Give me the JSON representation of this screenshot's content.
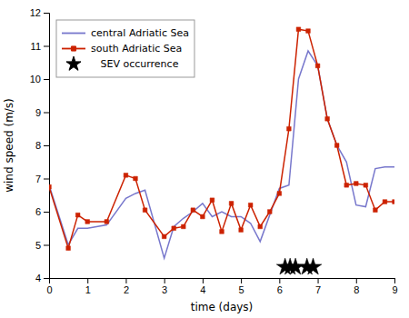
{
  "chart_data": {
    "type": "line",
    "xlabel": "time (days)",
    "ylabel": "wind speed (m/s)",
    "series": [
      {
        "name": "central Adriatic Sea",
        "color": "#7777cc",
        "marker": "none",
        "line_style": "solid",
        "x": [
          0,
          0.5,
          0.75,
          1.0,
          1.5,
          2.0,
          2.25,
          2.5,
          3.0,
          3.25,
          3.5,
          3.75,
          4.0,
          4.25,
          4.5,
          4.75,
          5.0,
          5.25,
          5.5,
          6.0,
          6.25,
          6.5,
          6.75,
          7.0,
          7.25,
          7.5,
          7.75,
          8.0,
          8.25,
          8.5,
          8.75,
          9.0
        ],
        "values": [
          6.8,
          5.0,
          5.5,
          5.5,
          5.6,
          6.4,
          6.55,
          6.65,
          4.6,
          5.55,
          5.8,
          6.0,
          6.25,
          5.85,
          6.0,
          5.85,
          5.85,
          5.65,
          5.1,
          6.7,
          6.8,
          10.0,
          10.85,
          10.4,
          8.8,
          8.0,
          7.5,
          6.2,
          6.15,
          7.3,
          7.35,
          7.35
        ]
      },
      {
        "name": "south Adriatic Sea",
        "color": "#cc2200",
        "marker": "square",
        "line_style": "solid",
        "x": [
          0,
          0.5,
          0.75,
          1.0,
          1.5,
          2.0,
          2.25,
          2.5,
          3.0,
          3.25,
          3.5,
          3.75,
          4.0,
          4.25,
          4.5,
          4.75,
          5.0,
          5.25,
          5.5,
          5.75,
          6.0,
          6.25,
          6.5,
          6.75,
          7.0,
          7.25,
          7.5,
          7.75,
          8.0,
          8.25,
          8.5,
          8.75,
          9.0
        ],
        "values": [
          6.75,
          4.9,
          5.9,
          5.7,
          5.7,
          7.1,
          7.0,
          6.05,
          5.25,
          5.5,
          5.55,
          6.05,
          5.85,
          6.35,
          5.4,
          6.25,
          5.45,
          6.2,
          5.55,
          6.0,
          6.55,
          8.5,
          11.5,
          11.45,
          10.4,
          8.8,
          8.0,
          6.8,
          6.85,
          6.8,
          6.05,
          6.3,
          6.3
        ]
      },
      {
        "name": "   SEV occurrence",
        "type": "scatter",
        "color": "#000000",
        "marker": "star",
        "line_style": "none",
        "x": [
          6.15,
          6.28,
          6.42,
          6.72,
          6.88
        ],
        "values": [
          4.33,
          4.33,
          4.33,
          4.33,
          4.33
        ]
      }
    ],
    "xlim": [
      0,
      9
    ],
    "ylim": [
      4,
      12
    ],
    "xticks": [
      0,
      1,
      2,
      3,
      4,
      5,
      6,
      7,
      8,
      9
    ],
    "yticks": [
      4,
      5,
      6,
      7,
      8,
      9,
      10,
      11,
      12
    ],
    "grid": false,
    "legend": "upper left"
  }
}
